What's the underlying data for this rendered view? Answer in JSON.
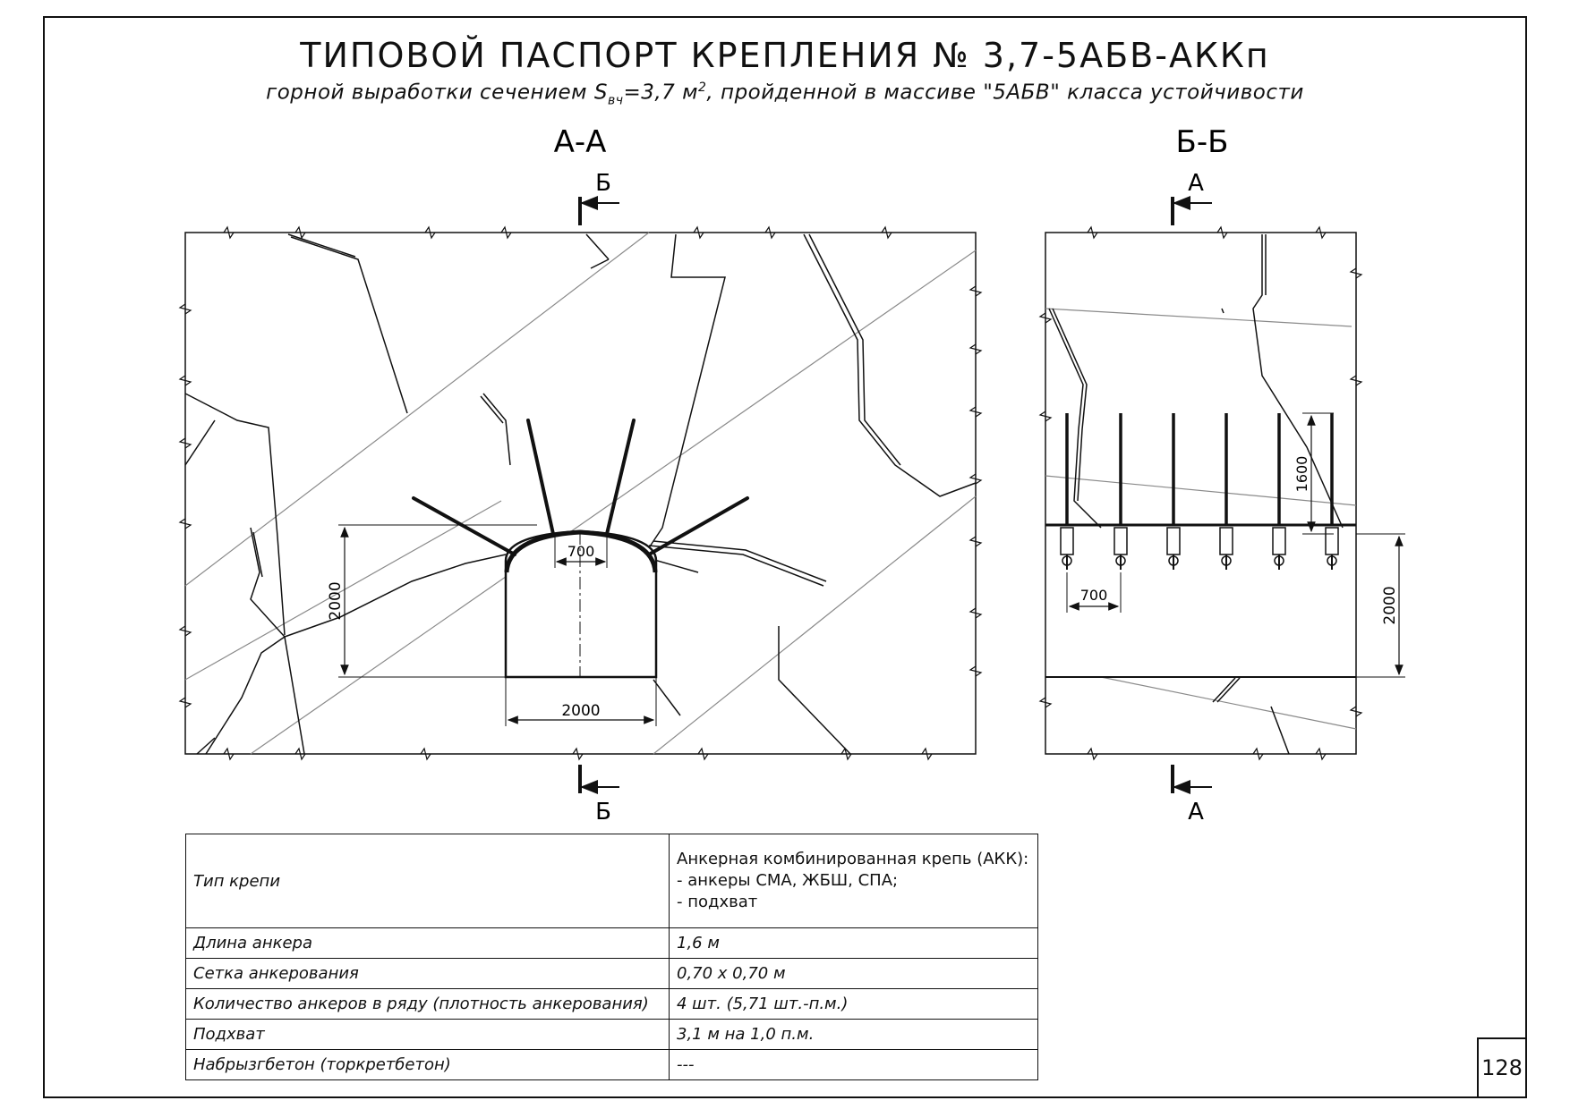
{
  "title": "ТИПОВОЙ ПАСПОРТ КРЕПЛЕНИЯ № 3,7-5АБВ-АККп",
  "subtitle": {
    "prefix": "горной выработки сечением S",
    "sub": "вч",
    "middle": "=3,7 м",
    "sup": "2",
    "suffix": ", пройденной в массиве \"5АБВ\" класса устойчивости"
  },
  "section_aa": {
    "heading": "А-А",
    "cut_top_label": "Б",
    "cut_bottom_label": "Б",
    "dim_height": "2000",
    "dim_width": "2000",
    "dim_spacing": "700"
  },
  "section_bb": {
    "heading": "Б-Б",
    "cut_top_label": "А",
    "cut_bottom_label": "А",
    "dim_anchor_length": "1600",
    "dim_spacing": "700",
    "dim_height": "2000"
  },
  "spec_table": {
    "rows": [
      {
        "label": "Тип крепи",
        "value_lines": [
          "Анкерная комбинированная крепь (АКК):",
          "- анкеры СМА, ЖБШ, СПА;",
          "- подхват"
        ]
      },
      {
        "label": "Длина анкера",
        "value": "1,6 м"
      },
      {
        "label": "Сетка анкерования",
        "value": "0,70 х 0,70 м"
      },
      {
        "label": "Количество анкеров в ряду (плотность анкерования)",
        "value": "4 шт. (5,71 шт.-п.м.)"
      },
      {
        "label": "Подхват",
        "value": "3,1 м на 1,0 п.м."
      },
      {
        "label": "Набрызгбетон (торкретбетон)",
        "value": "---"
      }
    ]
  },
  "page_number": "128"
}
